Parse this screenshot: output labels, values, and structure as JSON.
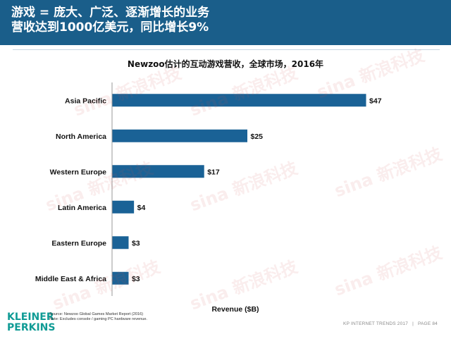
{
  "header": {
    "title_line1": "游戏 = 庞大、广泛、逐渐增长的业务",
    "title_line2": "营收达到1000亿美元，同比增长9%"
  },
  "watermark": "sina 新浪科技",
  "chart_data": {
    "type": "bar",
    "orientation": "horizontal",
    "title": "Newzoo估计的互动游戏营收，全球市场，2016年",
    "xlabel": "Revenue ($B)",
    "ylabel": "",
    "categories": [
      "Asia Pacific",
      "North America",
      "Western Europe",
      "Latin America",
      "Eastern Europe",
      "Middle East & Africa"
    ],
    "values": [
      47,
      25,
      17,
      4,
      3,
      3
    ],
    "data_labels": [
      "$47",
      "$25",
      "$17",
      "$4",
      "$3",
      "$3"
    ],
    "xlim": [
      0,
      50
    ],
    "bar_color": "#1a6296",
    "grid": false
  },
  "notes": {
    "source": "Source: Newzoo Global Games Market Report (2016)",
    "note": "Note: Excludes console / gaming PC hardware revenue."
  },
  "brand": {
    "line1": "KLEINER",
    "line2": "PERKINS",
    "color": "#0f9b95"
  },
  "footer": {
    "report": "KP INTERNET TRENDS 2017",
    "separator": "|",
    "page": "PAGE 84"
  }
}
